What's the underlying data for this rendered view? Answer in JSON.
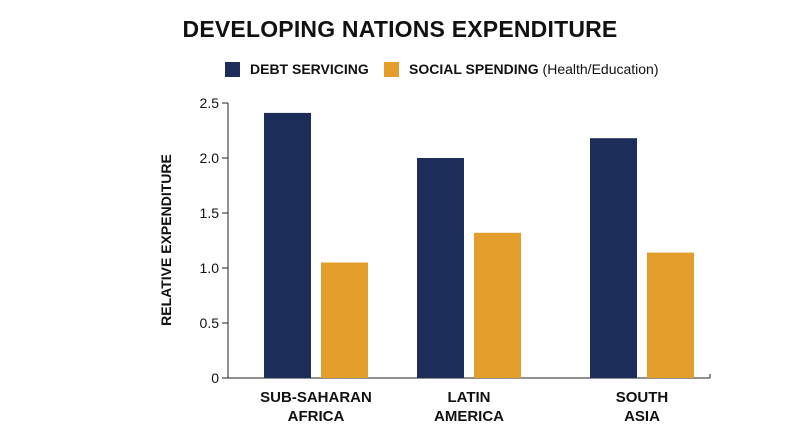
{
  "chart_data": {
    "type": "bar",
    "title": "DEVELOPING NATIONS EXPENDITURE",
    "ylabel": "RELATIVE EXPENDITURE",
    "xlabel": "",
    "categories": [
      [
        "SUB-SAHARAN",
        "AFRICA"
      ],
      [
        "LATIN",
        "AMERICA"
      ],
      [
        "SOUTH",
        "ASIA"
      ]
    ],
    "series": [
      {
        "name": "DEBT SERVICING",
        "name_suffix": "",
        "color": "#1c2d5a",
        "values": [
          2.41,
          2.0,
          2.18
        ]
      },
      {
        "name": "SOCIAL SPENDING",
        "name_suffix": "(Health/Education)",
        "color": "#e39d2b",
        "values": [
          1.05,
          1.32,
          1.14
        ]
      }
    ],
    "ylim": [
      0,
      2.5
    ],
    "yticks": [
      "0",
      "0.5",
      "1.0",
      "1.5",
      "2.0",
      "2.5"
    ],
    "ytick_values": [
      0,
      0.5,
      1.0,
      1.5,
      2.0,
      2.5
    ],
    "grid": false,
    "legend_position": "top-center"
  }
}
